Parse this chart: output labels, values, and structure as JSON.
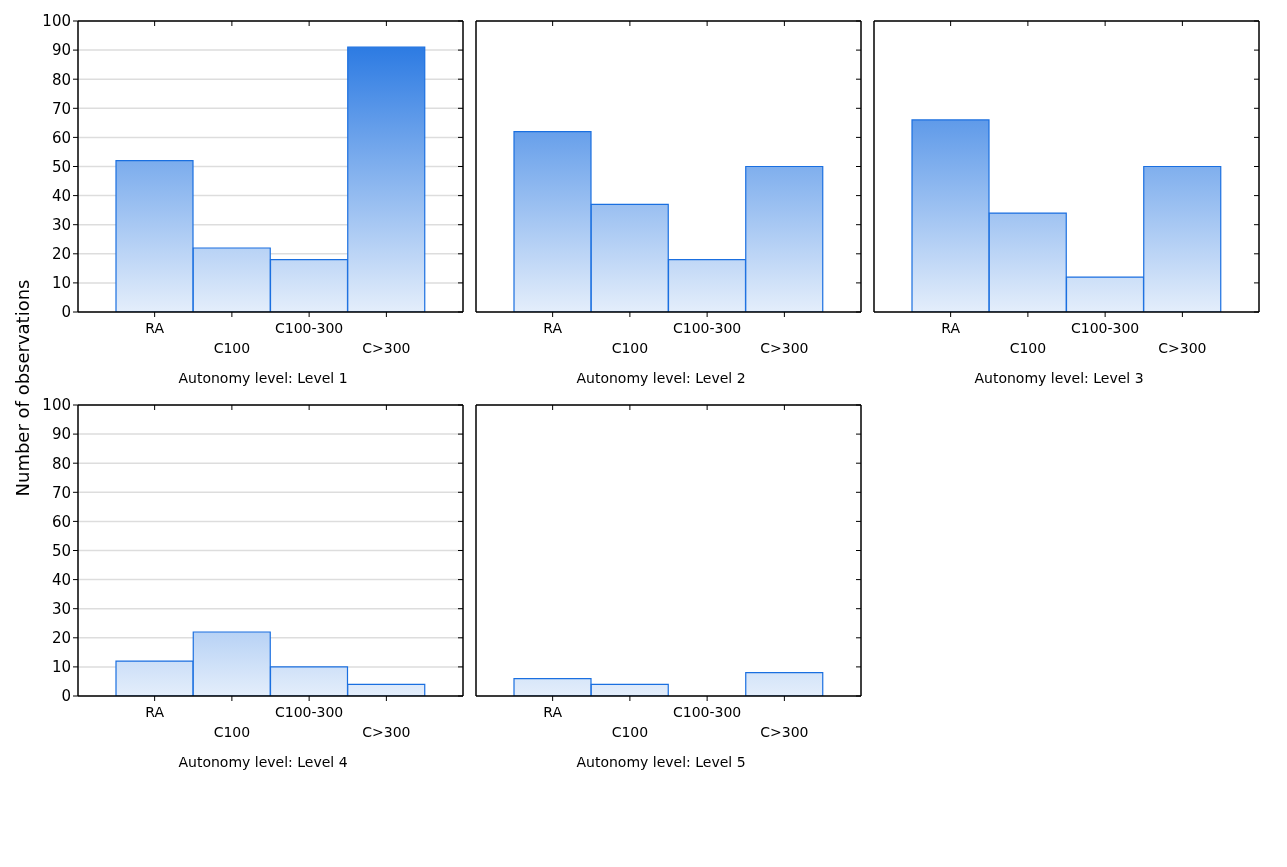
{
  "chart_data": [
    {
      "type": "bar",
      "ylabel": "Number of observations",
      "xlabel": "Autonomy level: Level 1",
      "categories": [
        "RA",
        "C100",
        "C100-300",
        "C>300"
      ],
      "values": [
        52,
        22,
        18,
        91
      ],
      "color": "#1a6fe0",
      "ylim": [
        0,
        100
      ],
      "yticks": [
        0,
        10,
        20,
        30,
        40,
        50,
        60,
        70,
        80,
        90,
        100
      ],
      "grid": "y"
    },
    {
      "type": "bar",
      "xlabel": "Autonomy level: Level 2",
      "categories": [
        "RA",
        "C100",
        "C100-300",
        "C>300"
      ],
      "values": [
        62,
        37,
        18,
        50
      ],
      "color": "#1a6fe0",
      "ylim": [
        0,
        100
      ],
      "yticks": [
        0,
        10,
        20,
        30,
        40,
        50,
        60,
        70,
        80,
        90,
        100
      ],
      "grid": "y",
      "tick_labels": "x"
    },
    {
      "type": "bar",
      "xlabel": "Autonomy level: Level 3",
      "categories": [
        "RA",
        "C100",
        "C100-300",
        "C>300"
      ],
      "values": [
        66,
        34,
        12,
        50
      ],
      "color": "#1a6fe0",
      "ylim": [
        0,
        100
      ],
      "yticks": [
        0,
        10,
        20,
        30,
        40,
        50,
        60,
        70,
        80,
        90,
        100
      ],
      "grid": "y",
      "tick_labels": "x"
    },
    {
      "type": "bar",
      "xlabel": "Autonomy level: Level 4",
      "categories": [
        "RA",
        "C100",
        "C100-300",
        "C>300"
      ],
      "values": [
        12,
        22,
        10,
        4
      ],
      "color": "#1a6fe0",
      "ylim": [
        0,
        100
      ],
      "yticks": [
        0,
        10,
        20,
        30,
        40,
        50,
        60,
        70,
        80,
        90,
        100
      ],
      "grid": "y"
    },
    {
      "type": "bar",
      "xlabel": "Autonomy level: Level 5",
      "categories": [
        "RA",
        "C100",
        "C100-300",
        "C>300"
      ],
      "values": [
        6,
        4,
        0,
        8
      ],
      "color": "#1a6fe0",
      "ylim": [
        0,
        100
      ],
      "yticks": [
        0,
        10,
        20,
        30,
        40,
        50,
        60,
        70,
        80,
        90,
        100
      ],
      "grid": "y",
      "tick_labels": "x"
    }
  ]
}
